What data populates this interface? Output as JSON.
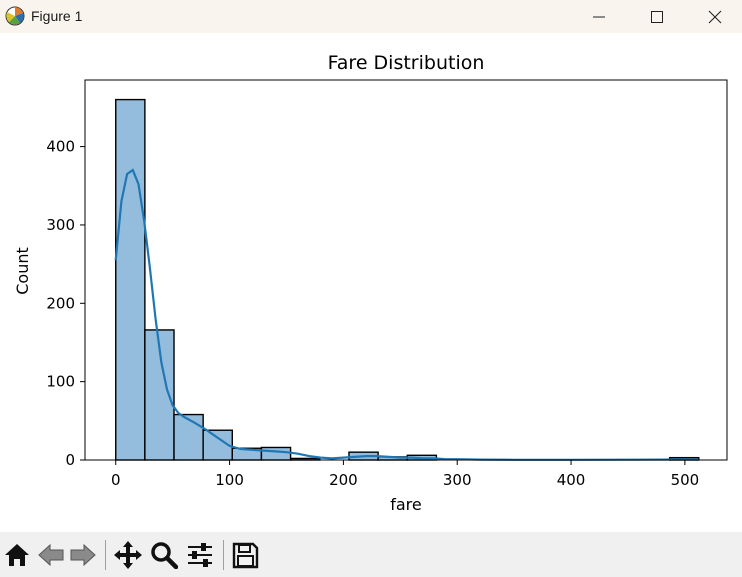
{
  "window": {
    "title": "Figure 1",
    "icons": {
      "app": "matplotlib-logo-icon",
      "minimize": "minimize-icon",
      "maximize": "maximize-icon",
      "close": "close-icon"
    }
  },
  "toolbar": {
    "buttons": [
      {
        "name": "home-icon"
      },
      {
        "name": "back-arrow-icon"
      },
      {
        "name": "forward-arrow-icon"
      },
      {
        "name": "pan-icon"
      },
      {
        "name": "zoom-icon"
      },
      {
        "name": "configure-subplots-icon"
      },
      {
        "name": "save-icon"
      }
    ]
  },
  "chart_data": {
    "type": "bar",
    "title": "Fare Distribution",
    "xlabel": "fare",
    "ylabel": "Count",
    "xlim": [
      -27,
      537
    ],
    "ylim": [
      0,
      485
    ],
    "xticks": [
      0,
      100,
      200,
      300,
      400,
      500
    ],
    "yticks": [
      0,
      100,
      200,
      300,
      400
    ],
    "bin_width": 25.6,
    "bins": [
      {
        "x0": 0.0,
        "count": 460
      },
      {
        "x0": 25.6,
        "count": 166
      },
      {
        "x0": 51.2,
        "count": 58
      },
      {
        "x0": 76.8,
        "count": 38
      },
      {
        "x0": 102.4,
        "count": 15
      },
      {
        "x0": 128.0,
        "count": 16
      },
      {
        "x0": 153.7,
        "count": 2
      },
      {
        "x0": 179.3,
        "count": 0
      },
      {
        "x0": 204.9,
        "count": 10
      },
      {
        "x0": 230.5,
        "count": 4
      },
      {
        "x0": 256.1,
        "count": 6
      },
      {
        "x0": 281.7,
        "count": 0
      },
      {
        "x0": 307.3,
        "count": 0
      },
      {
        "x0": 332.9,
        "count": 0
      },
      {
        "x0": 358.6,
        "count": 0
      },
      {
        "x0": 384.2,
        "count": 0
      },
      {
        "x0": 409.8,
        "count": 0
      },
      {
        "x0": 435.4,
        "count": 0
      },
      {
        "x0": 461.0,
        "count": 0
      },
      {
        "x0": 486.6,
        "count": 3
      }
    ],
    "kde": {
      "x": [
        0,
        5,
        10,
        15,
        20,
        25,
        30,
        35,
        40,
        45,
        50,
        55,
        60,
        70,
        80,
        90,
        100,
        110,
        120,
        130,
        140,
        150,
        160,
        170,
        180,
        190,
        200,
        210,
        220,
        230,
        240,
        250,
        260,
        270,
        280,
        290,
        300,
        320,
        350,
        400,
        450,
        500,
        512
      ],
      "y": [
        255,
        330,
        365,
        370,
        352,
        305,
        245,
        180,
        125,
        90,
        70,
        60,
        55,
        47,
        38,
        28,
        18,
        14,
        13,
        12,
        11,
        10,
        8,
        5,
        3,
        2,
        3,
        4,
        5,
        5,
        4,
        3,
        3,
        2,
        2,
        1,
        1,
        0.5,
        0.3,
        0.3,
        0.4,
        0.6,
        0.6
      ]
    },
    "colors": {
      "bar_fill": "#94bcdc",
      "bar_edge": "#000000",
      "kde_line": "#1f77b4"
    },
    "grid": false,
    "legend": "none"
  }
}
